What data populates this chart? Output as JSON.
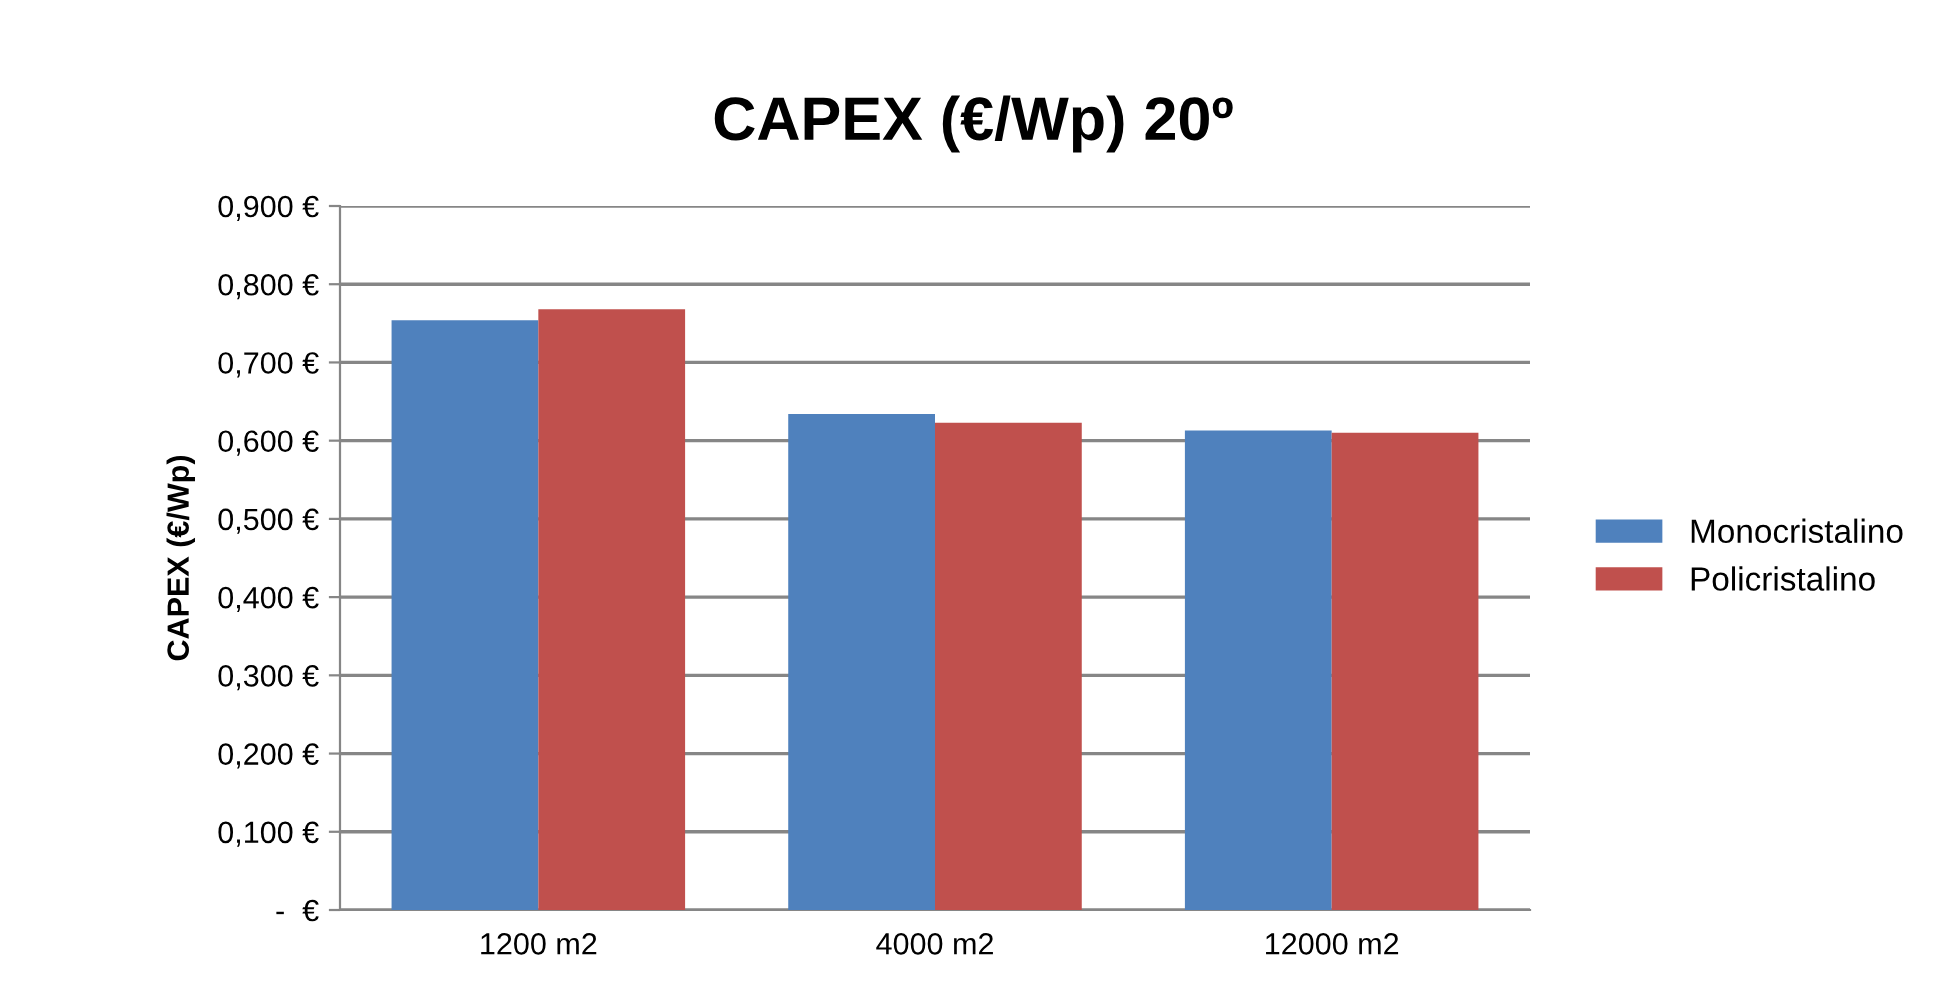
{
  "chart_data": {
    "type": "bar",
    "title": "CAPEX (€/Wp) 20º",
    "ylabel": "CAPEX (€/Wp)",
    "categories": [
      "1200 m2",
      "4000 m2",
      "12000 m2"
    ],
    "series": [
      {
        "name": "Monocristalino",
        "color": "#4f81bd",
        "values": [
          0.754,
          0.634,
          0.613
        ]
      },
      {
        "name": "Policristalino",
        "color": "#c0504d",
        "values": [
          0.768,
          0.623,
          0.61
        ]
      }
    ],
    "ylim": [
      0,
      0.9
    ],
    "yticks": [
      {
        "value": 0,
        "label": "-  €"
      },
      {
        "value": 0.1,
        "label": "0,100 €"
      },
      {
        "value": 0.2,
        "label": "0,200 €"
      },
      {
        "value": 0.3,
        "label": "0,300 €"
      },
      {
        "value": 0.4,
        "label": "0,400 €"
      },
      {
        "value": 0.5,
        "label": "0,500 €"
      },
      {
        "value": 0.6,
        "label": "0,600 €"
      },
      {
        "value": 0.7,
        "label": "0,700 €"
      },
      {
        "value": 0.8,
        "label": "0,800 €"
      },
      {
        "value": 0.9,
        "label": "0,900 €"
      }
    ],
    "grid": "y",
    "legend": "right"
  }
}
